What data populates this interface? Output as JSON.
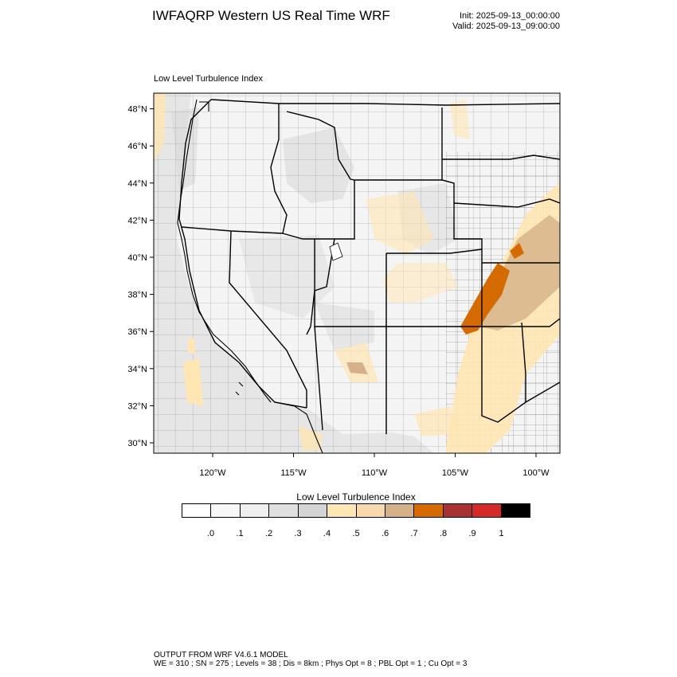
{
  "header": {
    "title": "IWFAQRP Western US Real Time WRF",
    "init": "Init: 2025-09-13_00:00:00",
    "valid": "Valid: 2025-09-13_09:00:00"
  },
  "map": {
    "field_title": "Low Level Turbulence Index",
    "lon_range": [
      -123.6,
      -98.3
    ],
    "lat_range": [
      29.4,
      48.9
    ],
    "lat_labels": [
      "30°N",
      "32°N",
      "34°N",
      "36°N",
      "38°N",
      "40°N",
      "42°N",
      "44°N",
      "46°N",
      "48°N"
    ],
    "lon_labels": [
      "120°W",
      "115°W",
      "110°W",
      "105°W",
      "100°W"
    ]
  },
  "colorbar": {
    "title": "Low Level Turbulence Index",
    "colors": [
      "#ffffff",
      "#f7f7f7",
      "#efefef",
      "#e0e0e0",
      "#d4d4d4",
      "#ffe6b3",
      "#f7d9ab",
      "#d4b188",
      "#d46a00",
      "#a83232",
      "#d42a2a",
      "#000000"
    ],
    "labels": [
      ".0",
      ".1",
      ".2",
      ".3",
      ".4",
      ".5",
      ".6",
      ".7",
      ".8",
      ".9",
      "1"
    ]
  },
  "footer": {
    "line1": "OUTPUT FROM WRF V4.6.1 MODEL",
    "line2": "WE = 310 ; SN = 275 ; Levels = 38 ; Dis = 8km ; Phys Opt = 8 ; PBL Opt = 1 ; Cu Opt = 3"
  }
}
